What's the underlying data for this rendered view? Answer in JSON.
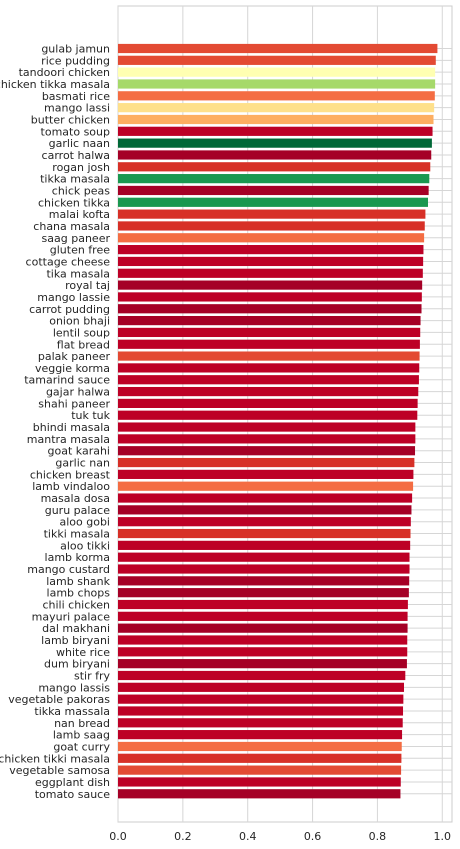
{
  "chart_data": {
    "type": "bar",
    "orientation": "horizontal",
    "title": "",
    "xlabel": "",
    "ylabel": "",
    "xlim": [
      0,
      1.03
    ],
    "xticks": [
      "0.0",
      "0.2",
      "0.4",
      "0.6",
      "0.8",
      "1.0"
    ],
    "grid": true,
    "categories": [
      "gulab jamun",
      "rice pudding",
      "tandoori chicken",
      "chicken tikka masala",
      "basmati rice",
      "mango lassi",
      "butter chicken",
      "tomato soup",
      "garlic naan",
      "carrot halwa",
      "rogan josh",
      "tikka masala",
      "chick peas",
      "chicken tikka",
      "malai kofta",
      "chana masala",
      "saag paneer",
      "gluten free",
      "cottage cheese",
      "tika masala",
      "royal taj",
      "mango lassie",
      "carrot pudding",
      "onion bhaji",
      "lentil soup",
      "flat bread",
      "palak paneer",
      "veggie korma",
      "tamarind sauce",
      "gajar halwa",
      "shahi paneer",
      "tuk tuk",
      "bhindi masala",
      "mantra masala",
      "goat karahi",
      "garlic nan",
      "chicken breast",
      "lamb vindaloo",
      "masala dosa",
      "guru palace",
      "aloo gobi",
      "tikki masala",
      "aloo tikki",
      "lamb korma",
      "mango custard",
      "lamb shank",
      "lamb chops",
      "chili chicken",
      "mayuri palace",
      "dal makhani",
      "lamb biryani",
      "white rice",
      "dum biryani",
      "stir fry",
      "mango lassis",
      "vegetable pakoras",
      "tikka massala",
      "nan bread",
      "lamb saag",
      "goat curry",
      "chicken tikki masala",
      "vegetable samosa",
      "eggplant dish",
      "tomato sauce"
    ],
    "values": [
      0.985,
      0.98,
      0.978,
      0.978,
      0.977,
      0.975,
      0.973,
      0.97,
      0.968,
      0.966,
      0.963,
      0.96,
      0.958,
      0.956,
      0.948,
      0.946,
      0.944,
      0.942,
      0.941,
      0.94,
      0.938,
      0.937,
      0.936,
      0.933,
      0.932,
      0.931,
      0.93,
      0.929,
      0.928,
      0.926,
      0.924,
      0.923,
      0.917,
      0.917,
      0.916,
      0.914,
      0.911,
      0.91,
      0.907,
      0.905,
      0.903,
      0.902,
      0.901,
      0.899,
      0.899,
      0.898,
      0.897,
      0.894,
      0.893,
      0.893,
      0.892,
      0.892,
      0.891,
      0.886,
      0.882,
      0.88,
      0.879,
      0.878,
      0.876,
      0.875,
      0.874,
      0.873,
      0.872,
      0.871
    ],
    "colors": [
      "#e34a33",
      "#e34a33",
      "#ffffb2",
      "#a6d96a",
      "#f46d43",
      "#fee08b",
      "#fdae61",
      "#bd0026",
      "#006837",
      "#a50026",
      "#d73027",
      "#1a9850",
      "#a50026",
      "#1a9850",
      "#d73027",
      "#d73027",
      "#f46d43",
      "#bd0026",
      "#bd0026",
      "#bd0026",
      "#a50026",
      "#bd0026",
      "#a50026",
      "#a50026",
      "#bd0026",
      "#bd0026",
      "#e34a33",
      "#bd0026",
      "#bd0026",
      "#bd0026",
      "#bd0026",
      "#bd0026",
      "#bd0026",
      "#bd0026",
      "#a50026",
      "#d73027",
      "#bd0026",
      "#f46d43",
      "#bd0026",
      "#a50026",
      "#bd0026",
      "#d73027",
      "#bd0026",
      "#bd0026",
      "#bd0026",
      "#a50026",
      "#a50026",
      "#bd0026",
      "#bd0026",
      "#a50026",
      "#bd0026",
      "#bd0026",
      "#a50026",
      "#bd0026",
      "#bd0026",
      "#bd0026",
      "#bd0026",
      "#bd0026",
      "#bd0026",
      "#f46d43",
      "#d73027",
      "#e34a33",
      "#bd0026",
      "#a50026"
    ]
  }
}
